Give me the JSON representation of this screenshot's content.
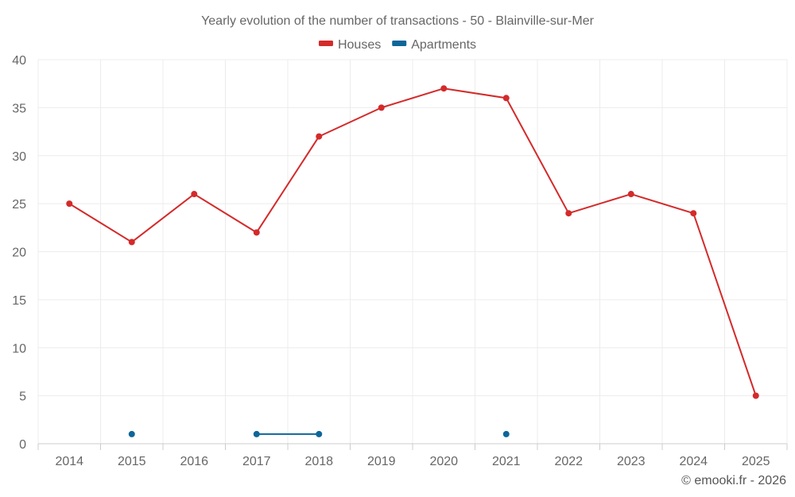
{
  "chart_data": {
    "type": "line",
    "title": "Yearly evolution of the number of transactions - 50 - Blainville-sur-Mer",
    "categories": [
      "2014",
      "2015",
      "2016",
      "2017",
      "2018",
      "2019",
      "2020",
      "2021",
      "2022",
      "2023",
      "2024",
      "2025"
    ],
    "series": [
      {
        "name": "Houses",
        "color": "#d42a2a",
        "values": [
          25,
          21,
          26,
          22,
          32,
          35,
          37,
          36,
          24,
          26,
          24,
          5
        ]
      },
      {
        "name": "Apartments",
        "color": "#0d6699",
        "values": [
          null,
          1,
          null,
          1,
          1,
          null,
          null,
          1,
          null,
          null,
          null,
          null
        ]
      }
    ],
    "ylim": [
      0,
      40
    ],
    "yticks": [
      0,
      5,
      10,
      15,
      20,
      25,
      30,
      35,
      40
    ],
    "xlabel": "",
    "ylabel": "",
    "grid": true,
    "legend": "top-center"
  },
  "credit": "© emooki.fr - 2026"
}
